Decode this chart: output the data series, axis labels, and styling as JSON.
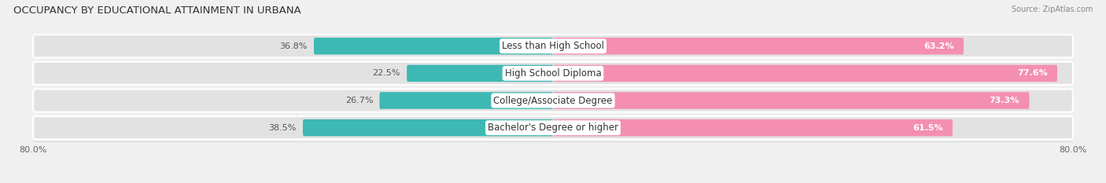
{
  "title": "OCCUPANCY BY EDUCATIONAL ATTAINMENT IN URBANA",
  "source": "Source: ZipAtlas.com",
  "categories": [
    "Less than High School",
    "High School Diploma",
    "College/Associate Degree",
    "Bachelor's Degree or higher"
  ],
  "owner_values": [
    36.8,
    22.5,
    26.7,
    38.5
  ],
  "renter_values": [
    63.2,
    77.6,
    73.3,
    61.5
  ],
  "owner_color": "#3db8b3",
  "renter_color": "#f48fb1",
  "renter_color_dark": "#f06292",
  "axis_min": -80.0,
  "axis_max": 80.0,
  "bar_height": 0.62,
  "background_color": "#f0f0f0",
  "bar_background_color": "#e2e2e2",
  "title_fontsize": 9.5,
  "label_fontsize": 8.5,
  "value_fontsize": 8,
  "tick_fontsize": 8
}
